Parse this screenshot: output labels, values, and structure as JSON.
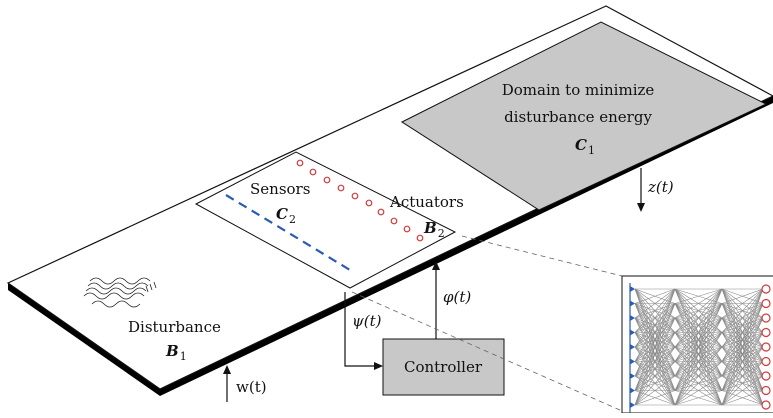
{
  "labels": {
    "domain_line1": "Domain to minimize",
    "domain_line2": "disturbance energy",
    "domain_symbol": "C",
    "domain_sub": "1",
    "sensors": "Sensors",
    "sensors_symbol": "C",
    "sensors_sub": "2",
    "actuators": "Actuators",
    "actuators_symbol": "B",
    "actuators_sub": "2",
    "disturbance": "Disturbance",
    "disturbance_symbol": "B",
    "disturbance_sub": "1",
    "controller": "Controller",
    "z_signal": "z(t)",
    "phi_signal": "φ(t)",
    "psi_signal": "ψ(t)",
    "w_signal": "w(t)"
  },
  "colors": {
    "plate_edge": "#111111",
    "plate_side": "#000000",
    "domain_fill": "#c8c8c8",
    "controller_fill": "#c8c8c8",
    "sensor_line": "#2a5bb5",
    "actuator_circle": "#d23a3a",
    "network_edge": "#8a8a8a",
    "network_input": "#2a5bb5",
    "network_output": "#d23a3a",
    "dashed_leader": "#666666"
  }
}
